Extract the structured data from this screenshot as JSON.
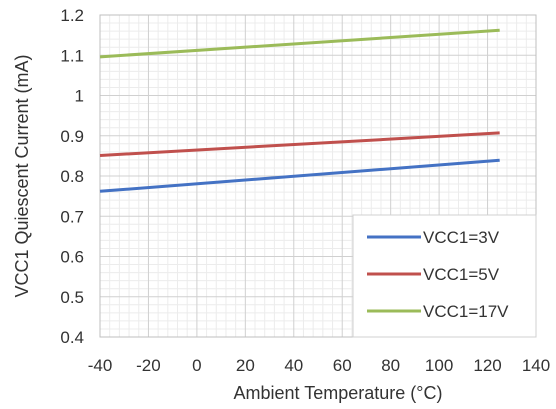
{
  "chart_data": {
    "type": "line",
    "title": "",
    "xlabel": "Ambient Temperature (°C)",
    "ylabel": "VCC1 Quiescent Current (mA)",
    "xlim": [
      -40,
      140
    ],
    "ylim": [
      0.4,
      1.2
    ],
    "x_ticks": [
      "-40",
      "-20",
      "0",
      "20",
      "40",
      "60",
      "80",
      "100",
      "120",
      "140"
    ],
    "y_ticks": [
      "0.4",
      "0.5",
      "0.6",
      "0.7",
      "0.8",
      "0.9",
      "1",
      "1.1",
      "1.2"
    ],
    "grid": true,
    "legend_position": "bottom-right",
    "series": [
      {
        "name": "VCC1=3V",
        "color": "#4472c4",
        "x": [
          -40,
          125
        ],
        "y": [
          0.762,
          0.839
        ]
      },
      {
        "name": "VCC1=5V",
        "color": "#c0504d",
        "x": [
          -40,
          125
        ],
        "y": [
          0.851,
          0.907
        ]
      },
      {
        "name": "VCC1=17V",
        "color": "#9bbb59",
        "x": [
          -40,
          125
        ],
        "y": [
          1.096,
          1.162
        ]
      }
    ]
  }
}
